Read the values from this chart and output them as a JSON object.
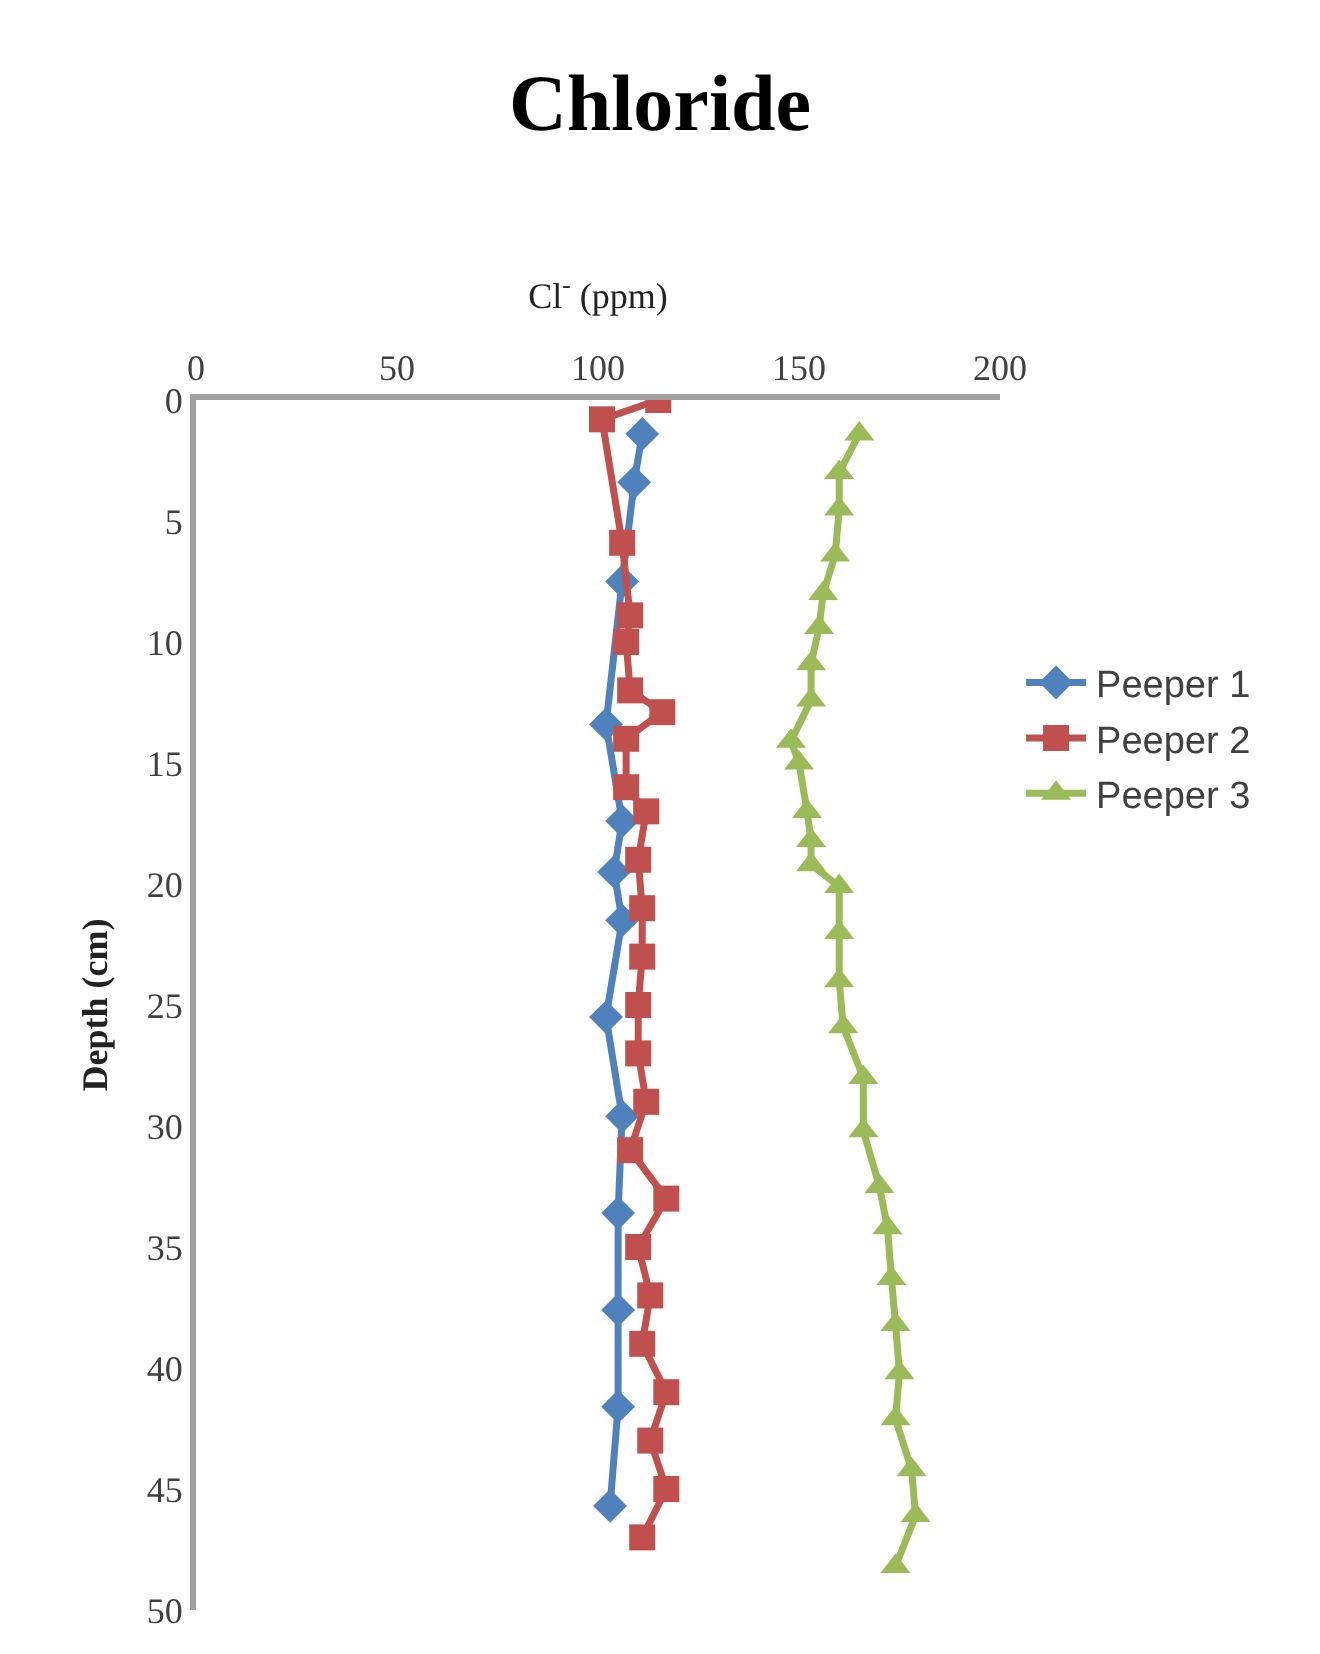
{
  "chart_data": {
    "type": "line",
    "title": "Chloride",
    "xlabel": "Cl$^{-}$ (ppm)",
    "ylabel": "Depth (cm)",
    "xlim": [
      0,
      200
    ],
    "xticks": [
      0,
      50,
      100,
      150,
      200
    ],
    "ylim": [
      50,
      0
    ],
    "yticks": [
      0,
      5,
      10,
      15,
      20,
      25,
      30,
      35,
      40,
      45,
      50
    ],
    "legend": "right",
    "line_style": "solid",
    "series": [
      {
        "name": "Peeper 1",
        "color": "#4f81bd",
        "marker": "diamond",
        "x": [
          111,
          109,
          106,
          102,
          106,
          104,
          106,
          102,
          106,
          105,
          105,
          105,
          103
        ],
        "values": [
          1.4,
          3.4,
          7.5,
          13.4,
          17.4,
          19.5,
          21.5,
          25.5,
          29.6,
          33.6,
          37.6,
          41.6,
          45.7
        ]
      },
      {
        "name": "Peeper 2",
        "color": "#c0504d",
        "marker": "square",
        "x": [
          115,
          101,
          106,
          108,
          107,
          108,
          116,
          107,
          107,
          112,
          110,
          111,
          111,
          110,
          110,
          112,
          108,
          117,
          110,
          113,
          111,
          117,
          113,
          117,
          111
        ],
        "values": [
          0,
          0.8,
          5.9,
          8.9,
          10,
          12,
          12.9,
          14,
          16,
          17,
          19,
          21,
          23,
          25,
          27,
          29,
          31,
          33,
          35,
          37,
          39,
          41,
          43,
          45,
          47
        ]
      },
      {
        "name": "Peeper 3",
        "color": "#9bbb59",
        "marker": "triangle",
        "x": [
          165,
          160,
          160,
          159,
          156,
          155,
          153,
          153,
          148,
          150,
          152,
          153,
          153,
          160,
          160,
          160,
          161,
          166,
          166,
          170,
          172,
          173,
          174,
          175,
          174,
          178,
          179,
          174
        ],
        "values": [
          1.4,
          3.0,
          4.5,
          6.4,
          8.0,
          9.4,
          10.9,
          12.4,
          14.1,
          15,
          17,
          18.2,
          19.2,
          20.1,
          22,
          24,
          25.9,
          28,
          30.2,
          32.5,
          34.2,
          36.3,
          38.2,
          40.2,
          42.1,
          44.2,
          46.1,
          48.2
        ]
      }
    ]
  }
}
